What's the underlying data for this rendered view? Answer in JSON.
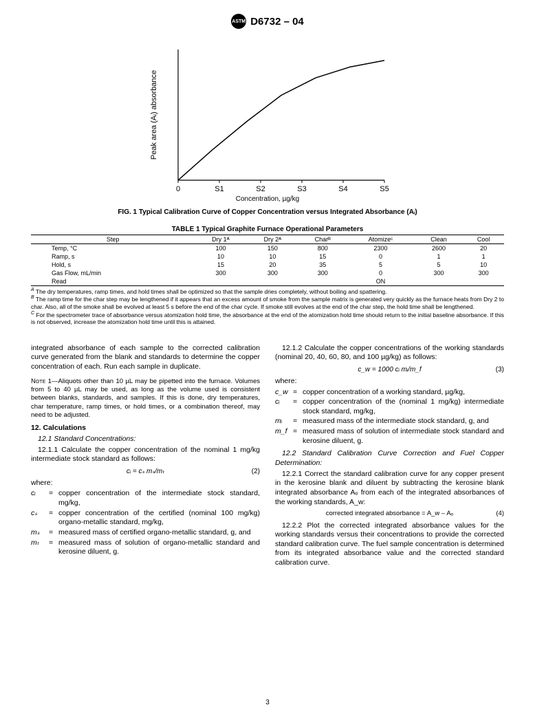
{
  "header": {
    "standard": "D6732 – 04"
  },
  "chart": {
    "type": "line",
    "ylabel": "Peak area (Aᵢ) absorbance",
    "xlabel": "Concentration, µg/kg",
    "xticks": [
      "0",
      "S1",
      "S2",
      "S3",
      "S4",
      "S5"
    ],
    "points": [
      [
        0,
        0
      ],
      [
        50,
        70
      ],
      [
        100,
        135
      ],
      [
        150,
        195
      ],
      [
        200,
        235
      ],
      [
        250,
        260
      ],
      [
        300,
        275
      ]
    ],
    "line_color": "#000000",
    "axis_color": "#000000",
    "background": "#ffffff"
  },
  "fig_caption": "FIG. 1 Typical Calibration Curve of Copper Concentration versus Integrated Absorbance (Aᵢ)",
  "table": {
    "title": "TABLE 1  Typical Graphite Furnace Operational Parameters",
    "headers": [
      "Step",
      "Dry 1ᴬ",
      "Dry 2ᴬ",
      "Charᴮ",
      "Atomizeᶜ",
      "Clean",
      "Cool"
    ],
    "rows": [
      [
        "Temp, °C",
        "100",
        "150",
        "800",
        "2300",
        "2600",
        "20"
      ],
      [
        "Ramp, s",
        "10",
        "10",
        "15",
        "0",
        "1",
        "1"
      ],
      [
        "Hold, s",
        "15",
        "20",
        "35",
        "5",
        "5",
        "10"
      ],
      [
        "Gas Flow, mL/min",
        "300",
        "300",
        "300",
        "0",
        "300",
        "300"
      ],
      [
        "Read",
        "",
        "",
        "",
        "ON",
        "",
        ""
      ]
    ]
  },
  "footnotes": {
    "a": "The dry temperatures, ramp times, and hold times shall be optimized so that the sample dries completely, without boiling and spattering.",
    "b": "The ramp time for the char step may be lengthened if it appears that an excess amount of smoke from the sample matrix is generated very quickly as the furnace heats from Dry 2 to char. Also, all of the smoke shall be evolved at least 5 s before the end of the char cycle. If smoke still evolves at the end of the char step, the hold time shall be lengthened.",
    "c": "For the spectrometer trace of absorbance versus atomization hold time, the absorbance at the end of the atomization hold time should return to the initial baseline absorbance. If this is not observed, increase the atomization hold time until this is attained."
  },
  "left_col": {
    "p1": "integrated absorbance of each sample to the corrected calibration curve generated from the blank and standards to determine the copper concentration of each. Run each sample in duplicate.",
    "note": "Aliquots other than 10 µL may be pipetted into the furnace. Volumes from 5 to 40 µL may be used, as long as the volume used is consistent between blanks, standards, and samples. If this is done, dry temperatures, char temperature, ramp times, or hold times, or a combination thereof, may need to be adjusted.",
    "note_label": "Note 1—",
    "sec12": "12. Calculations",
    "s12_1": "12.1 Standard Concentrations:",
    "s12_1_1": "12.1.1 Calculate the copper concentration of the nominal 1 mg/kg intermediate stock standard as follows:",
    "eq2": "cᵢ = cₛ mₛ/mₜ",
    "eq2_num": "(2)",
    "where": "where:",
    "defs": [
      [
        "cᵢ",
        "=",
        "copper concentration of the intermediate stock standard, mg/kg,"
      ],
      [
        "cₛ",
        "=",
        "copper concentration of the certified (nominal 100 mg/kg) organo-metallic standard, mg/kg,"
      ],
      [
        "mₛ",
        "=",
        "measured mass of certified organo-metallic standard, g, and"
      ],
      [
        "mₜ",
        "=",
        "measured mass of solution of organo-metallic standard and kerosine diluent, g."
      ]
    ]
  },
  "right_col": {
    "s12_1_2": "12.1.2 Calculate the copper concentrations of the working standards (nominal 20, 40, 60, 80, and 100 µg/kg) as follows:",
    "eq3": "c_w = 1000 cᵢ mᵢ/m_f",
    "eq3_num": "(3)",
    "where": "where:",
    "defs": [
      [
        "c_w",
        "=",
        "copper concentration of a working standard, µg/kg,"
      ],
      [
        "cᵢ",
        "=",
        "copper concentration of the (nominal 1 mg/kg) intermediate stock standard, mg/kg,"
      ],
      [
        "mᵢ",
        "=",
        "measured mass of the intermediate stock standard, g, and"
      ],
      [
        "m_f",
        "=",
        "measured mass of solution of intermediate stock standard and kerosine diluent, g."
      ]
    ],
    "s12_2": "12.2 Standard Calibration Curve Correction and Fuel Copper Determination:",
    "s12_2_1": "12.2.1 Correct the standard calibration curve for any copper present in the kerosine blank and diluent by subtracting the kerosine blank integrated absorbance Aₒ from each of the integrated absorbances of the working standards, A_w:",
    "eq4": "corrected integrated absorbance = A_w – Aₒ",
    "eq4_num": "(4)",
    "s12_2_2": "12.2.2 Plot the corrected integrated absorbance values for the working standards versus their concentrations to provide the corrected standard calibration curve. The fuel sample concentration is determined from its integrated absorbance value and the corrected standard calibration curve."
  },
  "page_number": "3"
}
